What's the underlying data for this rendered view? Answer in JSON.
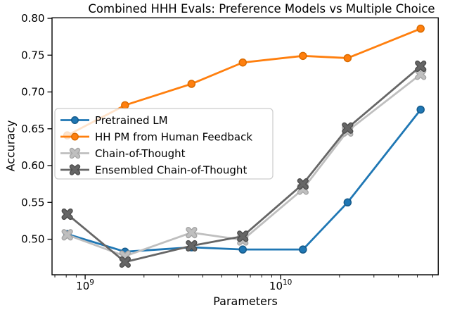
{
  "chart_data": {
    "type": "line",
    "title": "Combined HHH Evals: Preference Models vs Multiple Choice",
    "xlabel": "Parameters",
    "ylabel": "Accuracy",
    "x_scale": "log",
    "grid": false,
    "legend_position": "middle-left",
    "xlim": [
      677000000,
      64000000000
    ],
    "ylim": [
      0.4517,
      0.8007
    ],
    "x": [
      810000000,
      1600000000,
      3500000000,
      6400000000,
      13000000000,
      22000000000,
      52000000000
    ],
    "series": [
      {
        "name": "Pretrained LM",
        "marker": "circle",
        "color": "#1f77b4",
        "edge_color": "#155a8a",
        "values": [
          0.507,
          0.483,
          0.489,
          0.486,
          0.486,
          0.55,
          0.676
        ]
      },
      {
        "name": "HH PM from Human Feedback",
        "marker": "circle",
        "color": "#ff7f0e",
        "edge_color": "#d96b00",
        "values": [
          0.641,
          0.682,
          0.711,
          0.74,
          0.749,
          0.746,
          0.786
        ]
      },
      {
        "name": "Chain-of-Thought",
        "marker": "x",
        "color": "#bfbfbf",
        "edge_color": "#a3a3a3",
        "values": [
          0.506,
          0.477,
          0.509,
          0.499,
          0.568,
          0.647,
          0.724
        ]
      },
      {
        "name": "Ensembled Chain-of-Thought",
        "marker": "x",
        "color": "#666666",
        "edge_color": "#4a4a4a",
        "values": [
          0.534,
          0.469,
          0.491,
          0.504,
          0.575,
          0.651,
          0.735
        ]
      }
    ],
    "y_ticks": [
      {
        "value": 0.5,
        "label": "0.50"
      },
      {
        "value": 0.55,
        "label": "0.55"
      },
      {
        "value": 0.6,
        "label": "0.60"
      },
      {
        "value": 0.65,
        "label": "0.65"
      },
      {
        "value": 0.7,
        "label": "0.70"
      },
      {
        "value": 0.75,
        "label": "0.75"
      },
      {
        "value": 0.8,
        "label": "0.80"
      }
    ],
    "x_major_ticks": [
      {
        "value": 1000000000,
        "base": "10",
        "exp": "9"
      },
      {
        "value": 10000000000,
        "base": "10",
        "exp": "10"
      }
    ],
    "x_minor_ticks": [
      700000000,
      800000000,
      900000000,
      2000000000,
      3000000000,
      4000000000,
      5000000000,
      6000000000,
      7000000000,
      8000000000,
      9000000000,
      20000000000,
      30000000000,
      40000000000,
      50000000000,
      60000000000
    ],
    "axis_color": "#000000",
    "legend_border_color": "#cccccc",
    "legend_fill": "rgba(255,255,255,0.78)"
  }
}
